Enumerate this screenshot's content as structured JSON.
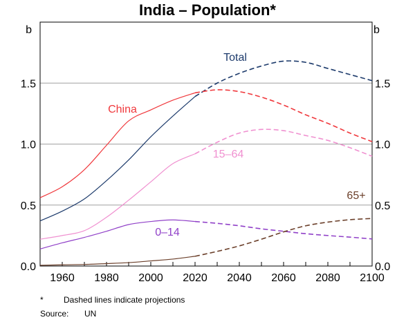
{
  "chart_data": {
    "type": "line",
    "title": "India – Population*",
    "ylabel_left": "b",
    "ylabel_right": "b",
    "xlim": [
      1950,
      2100
    ],
    "ylim": [
      0,
      2.0
    ],
    "x_ticks": [
      1960,
      1980,
      2000,
      2020,
      2040,
      2060,
      2080,
      2100
    ],
    "y_ticks": [
      "0.0",
      "0.5",
      "1.0",
      "1.5"
    ],
    "y_tick_values": [
      0,
      0.5,
      1.0,
      1.5
    ],
    "grid": true,
    "projection_start": 2020,
    "x": [
      1950,
      1960,
      1970,
      1980,
      1990,
      2000,
      2010,
      2020,
      2030,
      2040,
      2050,
      2060,
      2070,
      2080,
      2090,
      2100
    ],
    "series": [
      {
        "name": "Total",
        "color": "#1c3a6b",
        "values": [
          0.37,
          0.45,
          0.55,
          0.7,
          0.87,
          1.06,
          1.23,
          1.39,
          1.5,
          1.58,
          1.64,
          1.68,
          1.67,
          1.62,
          1.57,
          1.52
        ]
      },
      {
        "name": "China",
        "color": "#f0383c",
        "values": [
          0.56,
          0.65,
          0.79,
          0.99,
          1.19,
          1.28,
          1.36,
          1.42,
          1.445,
          1.43,
          1.385,
          1.32,
          1.24,
          1.17,
          1.09,
          1.02
        ]
      },
      {
        "name": "15–64",
        "color": "#f090d0",
        "values": [
          0.22,
          0.25,
          0.29,
          0.4,
          0.54,
          0.69,
          0.84,
          0.92,
          1.015,
          1.09,
          1.12,
          1.11,
          1.07,
          1.03,
          0.97,
          0.9
        ]
      },
      {
        "name": "0–14",
        "color": "#9040c8",
        "values": [
          0.14,
          0.19,
          0.235,
          0.285,
          0.34,
          0.365,
          0.378,
          0.365,
          0.35,
          0.33,
          0.305,
          0.285,
          0.265,
          0.25,
          0.237,
          0.222
        ]
      },
      {
        "name": "65+",
        "color": "#6b3f2a",
        "values": [
          0.006,
          0.01,
          0.013,
          0.02,
          0.028,
          0.042,
          0.057,
          0.08,
          0.12,
          0.165,
          0.22,
          0.28,
          0.33,
          0.36,
          0.38,
          0.39
        ]
      }
    ]
  },
  "footnotes": {
    "star": "*",
    "star_text": "Dashed lines indicate projections",
    "source_label": "Source:",
    "source_text": "UN"
  }
}
